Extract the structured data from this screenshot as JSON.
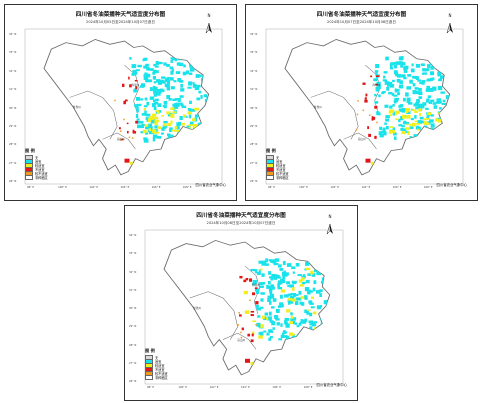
{
  "colors": {
    "province_fill": "#ffffff",
    "outline": "#6b6b6b",
    "suitable": "#19e3ea",
    "fairly_suitable": "#f2ef1f",
    "unsuitable": "#e21616",
    "less_suitable": "#f29b1a",
    "not_sown": "#d9d9d9"
  },
  "legend": {
    "title": "图 例",
    "items": [
      {
        "label": "无",
        "color": "#d9d9d9"
      },
      {
        "label": "适宜",
        "color": "#19e3ea"
      },
      {
        "label": "较适宜",
        "color": "#f2ef1f"
      },
      {
        "label": "不适宜",
        "color": "#e21616"
      },
      {
        "label": "较不适宜",
        "color": "#f29b1a"
      },
      {
        "label": "非种植区",
        "color": "#ffffff"
      }
    ]
  },
  "panels": [
    {
      "title": "四川省冬油菜播种天气适宜度分布图",
      "subtitle": "2024年10月05日至2024年10月07日逐日",
      "credit": "四川省农业气象中心",
      "north": "N"
    },
    {
      "title": "四川省冬油菜播种天气适宜度分布图",
      "subtitle": "2024年10月07日至2024年10月08日逐日",
      "credit": "四川省农业气象中心",
      "north": "N"
    },
    {
      "title": "四川省冬油菜播种天气适宜度分布图",
      "subtitle": "2024年10月08日至2024年10月07日逐日",
      "credit": "四川省农业气象中心",
      "north": "N"
    }
  ],
  "axis_ticks": {
    "bottom": [
      "98° E",
      "100° E",
      "102° E",
      "104° E",
      "106° E",
      "108° E"
    ],
    "left": [
      "34° N",
      "33° N",
      "32° N",
      "31° N",
      "30° N",
      "29° N",
      "28° N",
      "27° N",
      "26° N"
    ]
  },
  "region_labels": [
    "阿坝州",
    "甘孜州",
    "凉山州"
  ]
}
